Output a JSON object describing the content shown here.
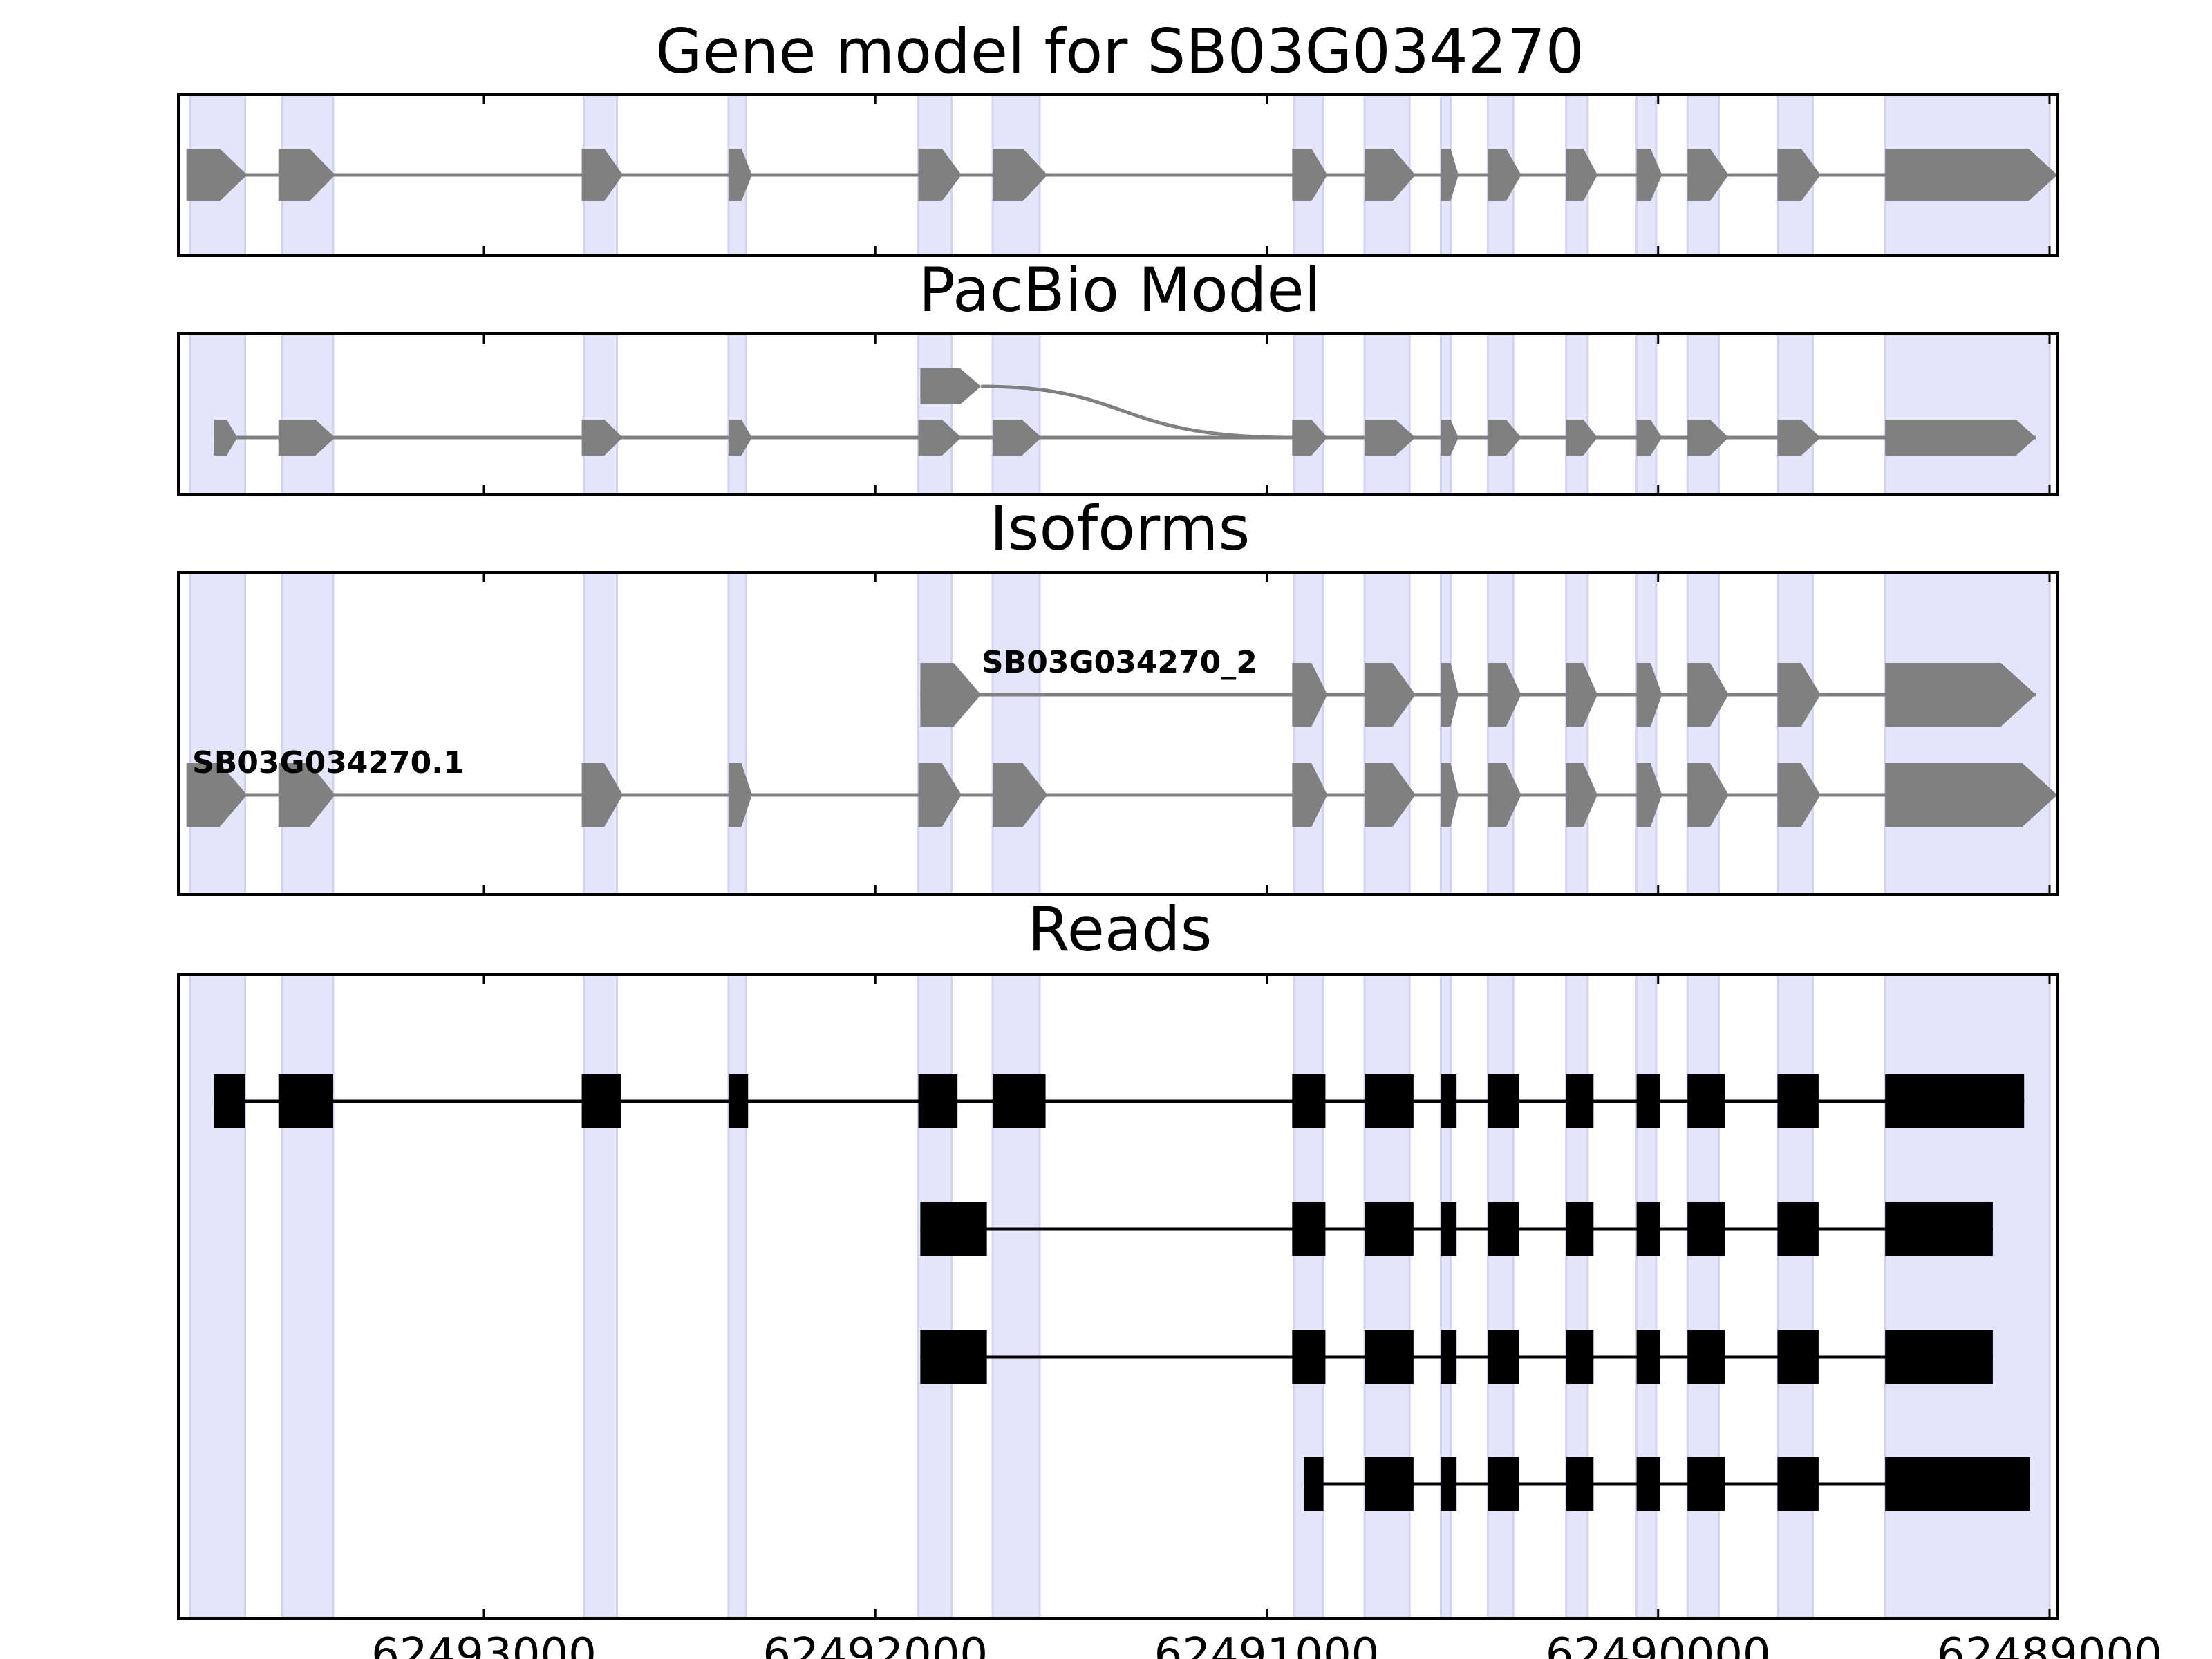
{
  "figure_title": "Gene model for SB03G034270",
  "colors": {
    "exon_band": "#e4e4fb",
    "exon_band_edge": "#d2d2f2",
    "gene_feature": "#808080",
    "read_feature": "#000000",
    "frame": "#000000"
  },
  "panels": [
    {
      "id": "gene-model",
      "title": "Gene model for SB03G034270"
    },
    {
      "id": "pacbio-model",
      "title": "PacBio Model"
    },
    {
      "id": "isoforms",
      "title": "Isoforms"
    },
    {
      "id": "reads",
      "title": "Reads"
    }
  ],
  "chart_data": {
    "type": "gene-structure",
    "title": "Gene model for SB03G034270",
    "x_axis": {
      "reversed": true,
      "range": [
        62493790,
        62488970
      ],
      "ticks": [
        62493000,
        62492000,
        62491000,
        62490000,
        62489000
      ],
      "tick_labels": [
        "62493000",
        "62492000",
        "62491000",
        "62490000",
        "62489000"
      ]
    },
    "exon_bands": [
      [
        62493750,
        62493610
      ],
      [
        62493515,
        62493385
      ],
      [
        62492745,
        62492660
      ],
      [
        62492375,
        62492330
      ],
      [
        62491890,
        62491805
      ],
      [
        62491700,
        62491580
      ],
      [
        62490930,
        62490855
      ],
      [
        62490750,
        62490635
      ],
      [
        62490555,
        62490530
      ],
      [
        62490435,
        62490370
      ],
      [
        62490235,
        62490180
      ],
      [
        62490055,
        62490005
      ],
      [
        62489925,
        62489845
      ],
      [
        62489695,
        62489605
      ],
      [
        62489420,
        62489000
      ]
    ],
    "gene_model": {
      "strand": "-",
      "exons": [
        [
          62493760,
          62493605
        ],
        [
          62493525,
          62493380
        ],
        [
          62492750,
          62492645
        ],
        [
          62492375,
          62492315
        ],
        [
          62491890,
          62491780
        ],
        [
          62491700,
          62491560
        ],
        [
          62490935,
          62490845
        ],
        [
          62490750,
          62490620
        ],
        [
          62490555,
          62490510
        ],
        [
          62490435,
          62490350
        ],
        [
          62490235,
          62490155
        ],
        [
          62490055,
          62489990
        ],
        [
          62489925,
          62489820
        ],
        [
          62489695,
          62489585
        ],
        [
          62489420,
          62488980
        ]
      ]
    },
    "pacbio_model": [
      {
        "strand": "-",
        "exons": [
          [
            62491700,
            62491575
          ],
          [
            62490935,
            62490845
          ],
          [
            62490750,
            62490620
          ],
          [
            62490555,
            62490510
          ],
          [
            62490435,
            62490350
          ],
          [
            62490235,
            62490155
          ],
          [
            62490055,
            62489990
          ],
          [
            62489925,
            62489820
          ],
          [
            62489695,
            62489585
          ],
          [
            62489420,
            62489035
          ]
        ]
      },
      {
        "strand": "-",
        "junction_to": 62490935,
        "exons": [
          [
            62491885,
            62491730
          ]
        ]
      }
    ],
    "isoforms": [
      {
        "name": "SB03G034270_2",
        "strand": "-",
        "exons": [
          [
            62491885,
            62491730
          ],
          [
            62490935,
            62490845
          ],
          [
            62490750,
            62490620
          ],
          [
            62490555,
            62490510
          ],
          [
            62490435,
            62490350
          ],
          [
            62490235,
            62490155
          ],
          [
            62490055,
            62489990
          ],
          [
            62489925,
            62489820
          ],
          [
            62489695,
            62489585
          ],
          [
            62489420,
            62489035
          ]
        ]
      },
      {
        "name": "SB03G034270.1",
        "strand": "-",
        "exons": [
          [
            62493760,
            62493605
          ],
          [
            62493525,
            62493380
          ],
          [
            62492750,
            62492645
          ],
          [
            62492375,
            62492315
          ],
          [
            62491890,
            62491780
          ],
          [
            62491700,
            62491560
          ],
          [
            62490935,
            62490845
          ],
          [
            62490750,
            62490620
          ],
          [
            62490555,
            62490510
          ],
          [
            62490435,
            62490350
          ],
          [
            62490235,
            62490155
          ],
          [
            62490055,
            62489990
          ],
          [
            62489925,
            62489820
          ],
          [
            62489695,
            62489585
          ],
          [
            62489420,
            62488980
          ]
        ]
      }
    ],
    "reads": [
      {
        "exons": [
          [
            62493690,
            62493610
          ],
          [
            62493525,
            62493385
          ],
          [
            62492750,
            62492650
          ],
          [
            62492375,
            62492325
          ],
          [
            62491890,
            62491790
          ],
          [
            62491700,
            62491565
          ],
          [
            62490935,
            62490850
          ],
          [
            62490750,
            62490625
          ],
          [
            62490555,
            62490515
          ],
          [
            62490435,
            62490355
          ],
          [
            62490235,
            62490165
          ],
          [
            62490055,
            62489995
          ],
          [
            62489925,
            62489830
          ],
          [
            62489695,
            62489590
          ],
          [
            62489420,
            62489065
          ]
        ]
      },
      {
        "exons": [
          [
            62491885,
            62491715
          ],
          [
            62490935,
            62490850
          ],
          [
            62490750,
            62490625
          ],
          [
            62490555,
            62490515
          ],
          [
            62490435,
            62490355
          ],
          [
            62490235,
            62490165
          ],
          [
            62490055,
            62489995
          ],
          [
            62489925,
            62489830
          ],
          [
            62489695,
            62489590
          ],
          [
            62489420,
            62489145
          ]
        ]
      },
      {
        "exons": [
          [
            62491885,
            62491715
          ],
          [
            62490935,
            62490850
          ],
          [
            62490750,
            62490625
          ],
          [
            62490555,
            62490515
          ],
          [
            62490435,
            62490355
          ],
          [
            62490235,
            62490165
          ],
          [
            62490055,
            62489995
          ],
          [
            62489925,
            62489830
          ],
          [
            62489695,
            62489590
          ],
          [
            62489420,
            62489145
          ]
        ]
      },
      {
        "exons": [
          [
            62490905,
            62490855
          ],
          [
            62490750,
            62490625
          ],
          [
            62490555,
            62490515
          ],
          [
            62490435,
            62490355
          ],
          [
            62490235,
            62490165
          ],
          [
            62490055,
            62489995
          ],
          [
            62489925,
            62489830
          ],
          [
            62489695,
            62489590
          ],
          [
            62489420,
            62489050
          ]
        ]
      }
    ]
  }
}
